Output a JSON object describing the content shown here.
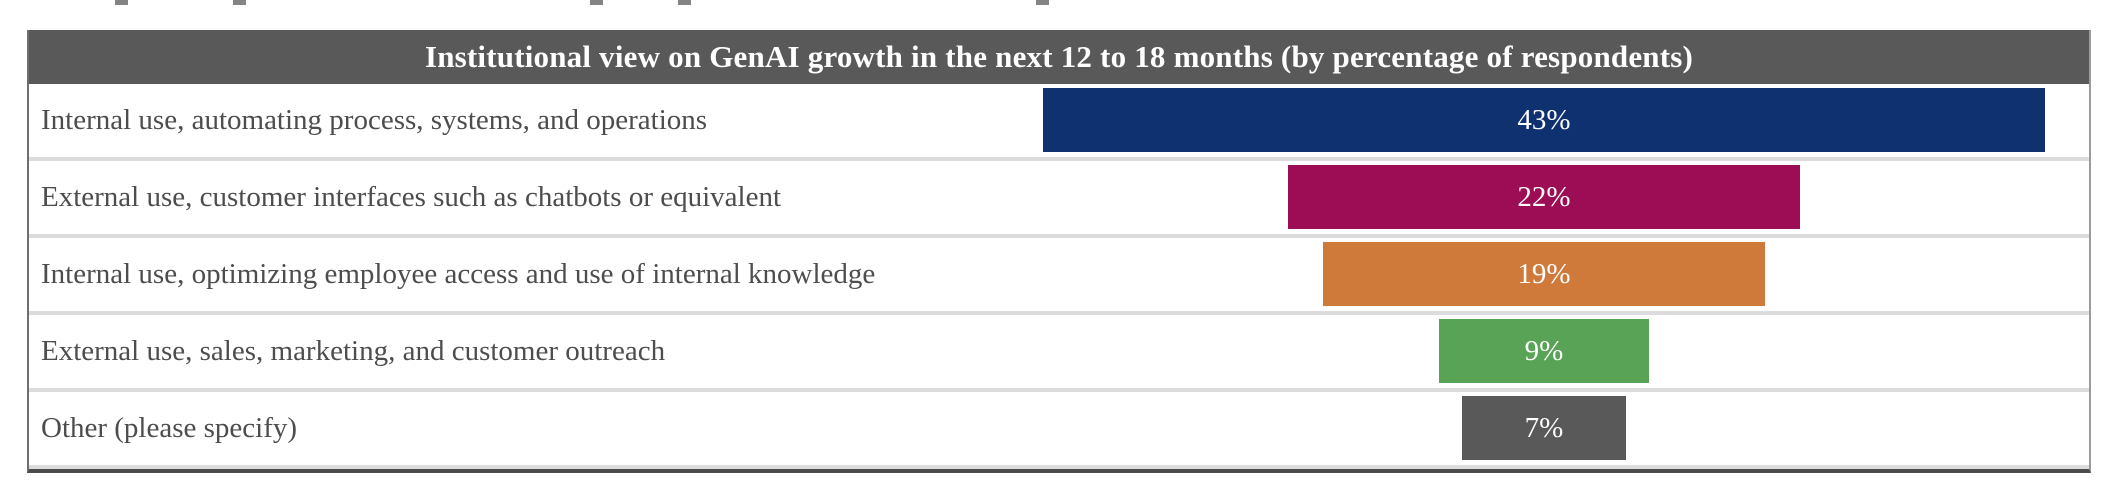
{
  "header": {
    "title": "Institutional view on GenAI growth in the next 12 to 18 months (by percentage of respondents)"
  },
  "chart_data": {
    "type": "bar",
    "subtype": "horizontal-centered-funnel",
    "title": "Institutional view on GenAI growth in the next 12 to 18 months (by percentage of respondents)",
    "xlabel": "",
    "ylabel": "",
    "legend": "none",
    "grid": "off",
    "value_unit": "percent of respondents",
    "categories": [
      "Internal use, automating process, systems, and operations",
      "External use, customer interfaces such as chatbots or equivalent",
      "Internal use, optimizing employee access and use of internal knowledge",
      "External use, sales, marketing, and customer outreach",
      "Other (please specify)"
    ],
    "values": [
      43,
      22,
      19,
      9,
      7
    ],
    "value_labels": [
      "43%",
      "22%",
      "19%",
      "9%",
      "7%"
    ],
    "bar_colors": [
      "#0f3170",
      "#9c0d55",
      "#cf7a3b",
      "#58a355",
      "#595959"
    ]
  },
  "colors": {
    "header_background": "#595959",
    "header_text": "#ffffff",
    "row_label_text": "#4d4d4d",
    "row_separator": "#dcdcdc",
    "bar_label_text": "#ffffff",
    "navy": "#0f3170",
    "crimson": "#9c0d55",
    "orange": "#cf7a3b",
    "green": "#58a355",
    "gray": "#595959"
  }
}
